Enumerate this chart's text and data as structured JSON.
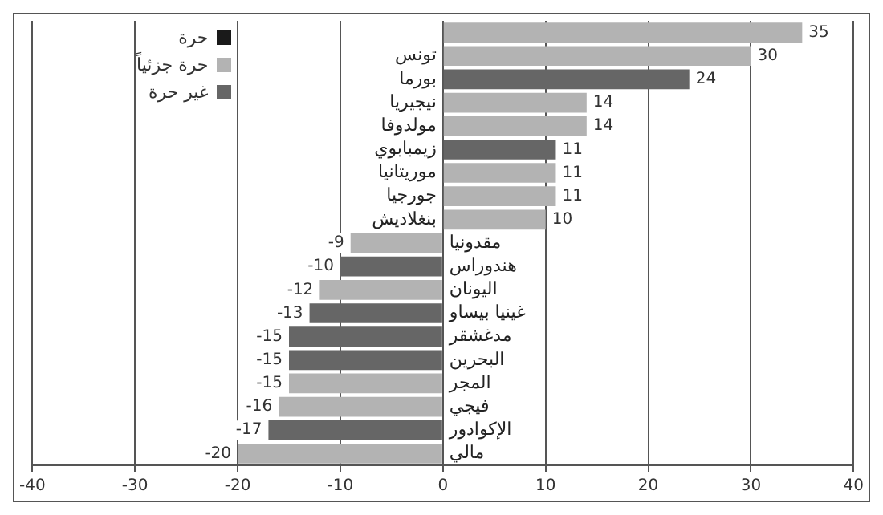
{
  "chart_data": {
    "type": "bar",
    "orientation": "horizontal",
    "categories": [
      null,
      "تونس",
      "بورما",
      "نيجيريا",
      "مولدوفا",
      "زيمبابوي",
      "موريتانيا",
      "جورجيا",
      "بنغلاديش",
      "مقدونيا",
      "هندوراس",
      "اليونان",
      "غينيا بيساو",
      "مدغشقر",
      "البحرين",
      "المجر",
      "فيجي",
      "الإكوادور",
      "مالي"
    ],
    "series": [
      {
        "name": "حرة",
        "color": "#1a1a1a",
        "values": [
          null,
          null,
          null,
          null,
          null,
          null,
          null,
          null,
          null,
          null,
          null,
          null,
          null,
          null,
          null,
          null,
          null,
          null,
          null
        ]
      },
      {
        "name": "حرة جزئياً",
        "color": "#b3b3b3",
        "values": [
          35,
          30,
          null,
          14,
          14,
          null,
          11,
          11,
          10,
          -9,
          null,
          -12,
          null,
          null,
          null,
          -15,
          -16,
          null,
          -20
        ]
      },
      {
        "name": "غير حرة",
        "color": "#666666",
        "values": [
          null,
          null,
          24,
          null,
          null,
          11,
          null,
          null,
          null,
          null,
          -10,
          null,
          -13,
          -15,
          -15,
          null,
          null,
          -17,
          null
        ]
      }
    ],
    "xlim": [
      -40,
      40
    ],
    "xticks": [
      -40,
      -30,
      -20,
      -10,
      0,
      10,
      20,
      30,
      40
    ],
    "grid": "x",
    "legend": "top left",
    "data_labels": true
  }
}
